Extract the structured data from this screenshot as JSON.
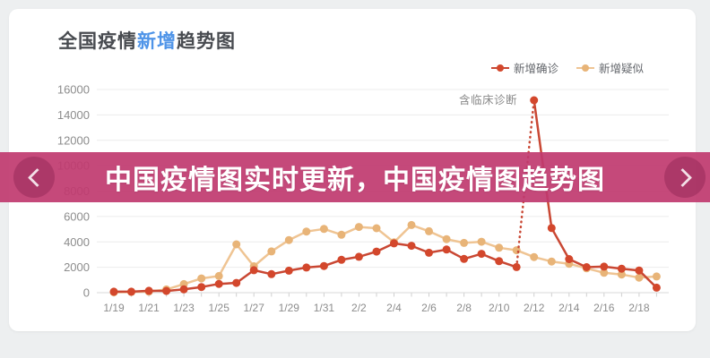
{
  "colors": {
    "page_bg": "#edeff0",
    "card_bg": "#ffffff",
    "grid_line": "#ececec",
    "axis_line": "#d9d9d9",
    "axis_text": "#8c8c8c",
    "title_text": "#484b50",
    "title_highlight": "#4f94e8",
    "annotation_text": "#8a8a8a",
    "confirmed_red": "#c94733",
    "suspected_orange": "#efc493",
    "banner_bg": "rgba(192,57,111,0.92)",
    "banner_text": "#ffffff"
  },
  "header": {
    "title_prefix": "全国疫情",
    "title_highlight": "新增",
    "title_suffix": "趋势图"
  },
  "legend": {
    "items": [
      {
        "id": "confirmed",
        "label": "新增确诊",
        "line_color": "#c94733",
        "dot_color": "#d3472c"
      },
      {
        "id": "suspected",
        "label": "新增疑似",
        "line_color": "#efc493",
        "dot_color": "#e8b478"
      }
    ]
  },
  "annotation": {
    "text": "含临床诊断"
  },
  "banner": {
    "text": "中国疫情图实时更新，中国疫情图趋势图",
    "left_icon": "chevron-left",
    "right_icon": "chevron-right"
  },
  "chart_data": {
    "type": "line",
    "title": "全国疫情新增趋势图",
    "x": [
      "1/19",
      "1/20",
      "1/21",
      "1/22",
      "1/23",
      "1/24",
      "1/25",
      "1/26",
      "1/27",
      "1/28",
      "1/29",
      "1/30",
      "1/31",
      "2/1",
      "2/2",
      "2/3",
      "2/4",
      "2/5",
      "2/6",
      "2/7",
      "2/8",
      "2/9",
      "2/10",
      "2/11",
      "2/12",
      "2/13",
      "2/14",
      "2/15",
      "2/16",
      "2/17",
      "2/18",
      "2/19"
    ],
    "series": [
      {
        "name": "新增确诊",
        "line_color": "#c94733",
        "dot_color": "#d3472c",
        "values": [
          77,
          77,
          149,
          131,
          259,
          444,
          688,
          769,
          1771,
          1459,
          1737,
          1982,
          2102,
          2590,
          2829,
          3235,
          3887,
          3694,
          3143,
          3399,
          2656,
          3062,
          2478,
          2015,
          15152,
          5090,
          2641,
          2009,
          2048,
          1886,
          1749,
          394
        ],
        "dash_segment": [
          23,
          24
        ],
        "dash_note": "含临床诊断",
        "peak": {
          "x": "2/12",
          "value": 15152
        }
      },
      {
        "name": "新增疑似",
        "line_color": "#efc493",
        "dot_color": "#e8b478",
        "values": [
          27,
          53,
          86,
          257,
          680,
          1118,
          1309,
          3806,
          2077,
          3248,
          4148,
          4812,
          5019,
          4562,
          5173,
          5072,
          3971,
          5328,
          4833,
          4214,
          3916,
          4008,
          3536,
          3342,
          2807,
          2450,
          2277,
          1918,
          1563,
          1432,
          1185,
          1277
        ]
      }
    ],
    "yticks": [
      0,
      2000,
      4000,
      6000,
      8000,
      10000,
      12000,
      14000,
      16000
    ],
    "ylim": [
      0,
      16000
    ],
    "xlabel": "",
    "ylabel": "",
    "x_label_every": 2,
    "grid": true,
    "legend_position": "top-right"
  }
}
